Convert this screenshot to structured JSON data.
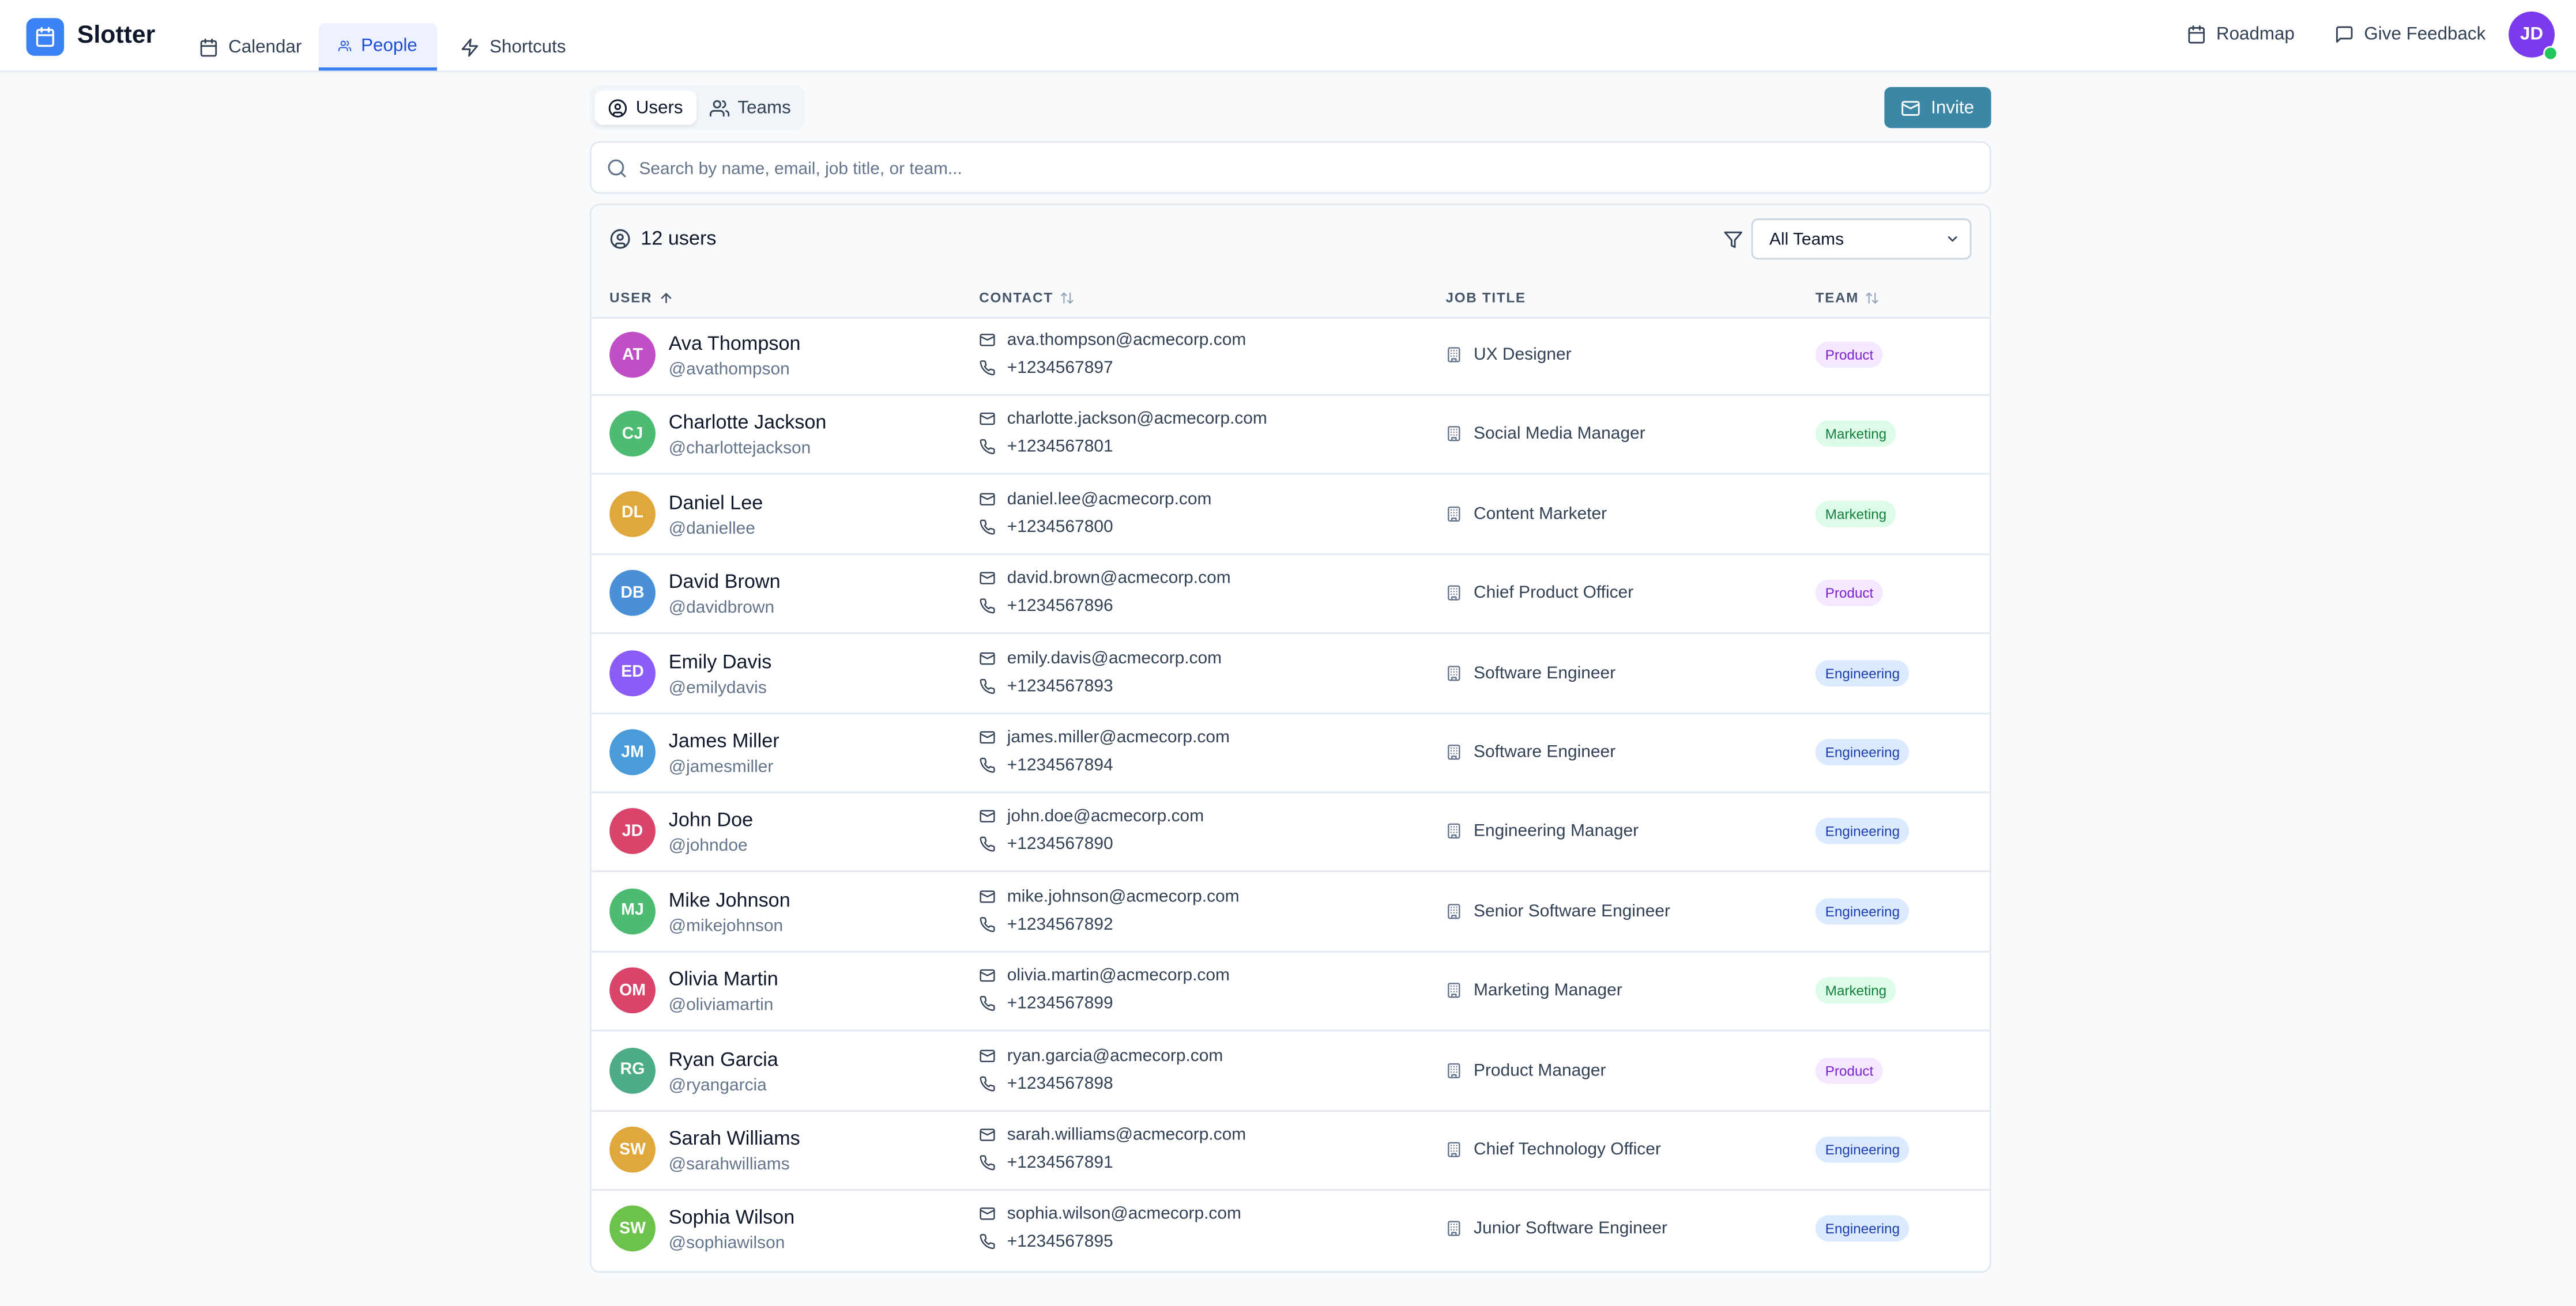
{
  "app": {
    "name": "Slotter"
  },
  "nav": {
    "tabs": [
      {
        "label": "Calendar",
        "icon": "calendar-icon"
      },
      {
        "label": "People",
        "icon": "users-icon",
        "active": true
      },
      {
        "label": "Shortcuts",
        "icon": "zap-icon"
      }
    ],
    "roadmap": "Roadmap",
    "feedback": "Give Feedback",
    "user_initials": "JD"
  },
  "segment": {
    "users": "Users",
    "teams": "Teams",
    "active": "Users"
  },
  "invite_label": "Invite",
  "search": {
    "placeholder": "Search by name, email, job title, or team...",
    "value": ""
  },
  "count_label": "12 users",
  "filter": {
    "selected": "All Teams"
  },
  "columns": {
    "user": "USER",
    "contact": "CONTACT",
    "job_title": "JOB TITLE",
    "team": "TEAM"
  },
  "team_colors": {
    "Product": "#7e22ce",
    "Marketing": "#15803d",
    "Engineering": "#1e40af"
  },
  "users": [
    {
      "initials": "AT",
      "name": "Ava Thompson",
      "handle": "@avathompson",
      "email": "ava.thompson@acmecorp.com",
      "phone": "+1234567897",
      "job": "UX Designer",
      "team": "Product",
      "color": "#c04fc6"
    },
    {
      "initials": "CJ",
      "name": "Charlotte Jackson",
      "handle": "@charlottejackson",
      "email": "charlotte.jackson@acmecorp.com",
      "phone": "+1234567801",
      "job": "Social Media Manager",
      "team": "Marketing",
      "color": "#4dbb72"
    },
    {
      "initials": "DL",
      "name": "Daniel Lee",
      "handle": "@daniellee",
      "email": "daniel.lee@acmecorp.com",
      "phone": "+1234567800",
      "job": "Content Marketer",
      "team": "Marketing",
      "color": "#e0a83c"
    },
    {
      "initials": "DB",
      "name": "David Brown",
      "handle": "@davidbrown",
      "email": "david.brown@acmecorp.com",
      "phone": "+1234567896",
      "job": "Chief Product Officer",
      "team": "Product",
      "color": "#4a90d9"
    },
    {
      "initials": "ED",
      "name": "Emily Davis",
      "handle": "@emilydavis",
      "email": "emily.davis@acmecorp.com",
      "phone": "+1234567893",
      "job": "Software Engineer",
      "team": "Engineering",
      "color": "#8b5cf6"
    },
    {
      "initials": "JM",
      "name": "James Miller",
      "handle": "@jamesmiller",
      "email": "james.miller@acmecorp.com",
      "phone": "+1234567894",
      "job": "Software Engineer",
      "team": "Engineering",
      "color": "#4a9bd9"
    },
    {
      "initials": "JD",
      "name": "John Doe",
      "handle": "@johndoe",
      "email": "john.doe@acmecorp.com",
      "phone": "+1234567890",
      "job": "Engineering Manager",
      "team": "Engineering",
      "color": "#d9456a"
    },
    {
      "initials": "MJ",
      "name": "Mike Johnson",
      "handle": "@mikejohnson",
      "email": "mike.johnson@acmecorp.com",
      "phone": "+1234567892",
      "job": "Senior Software Engineer",
      "team": "Engineering",
      "color": "#4dbb72"
    },
    {
      "initials": "OM",
      "name": "Olivia Martin",
      "handle": "@oliviamartin",
      "email": "olivia.martin@acmecorp.com",
      "phone": "+1234567899",
      "job": "Marketing Manager",
      "team": "Marketing",
      "color": "#d9456a"
    },
    {
      "initials": "RG",
      "name": "Ryan Garcia",
      "handle": "@ryangarcia",
      "email": "ryan.garcia@acmecorp.com",
      "phone": "+1234567898",
      "job": "Product Manager",
      "team": "Product",
      "color": "#4dab85"
    },
    {
      "initials": "SW",
      "name": "Sarah Williams",
      "handle": "@sarahwilliams",
      "email": "sarah.williams@acmecorp.com",
      "phone": "+1234567891",
      "job": "Chief Technology Officer",
      "team": "Engineering",
      "color": "#e0a83c"
    },
    {
      "initials": "SW",
      "name": "Sophia Wilson",
      "handle": "@sophiawilson",
      "email": "sophia.wilson@acmecorp.com",
      "phone": "+1234567895",
      "job": "Junior Software Engineer",
      "team": "Engineering",
      "color": "#6cc24a"
    }
  ]
}
